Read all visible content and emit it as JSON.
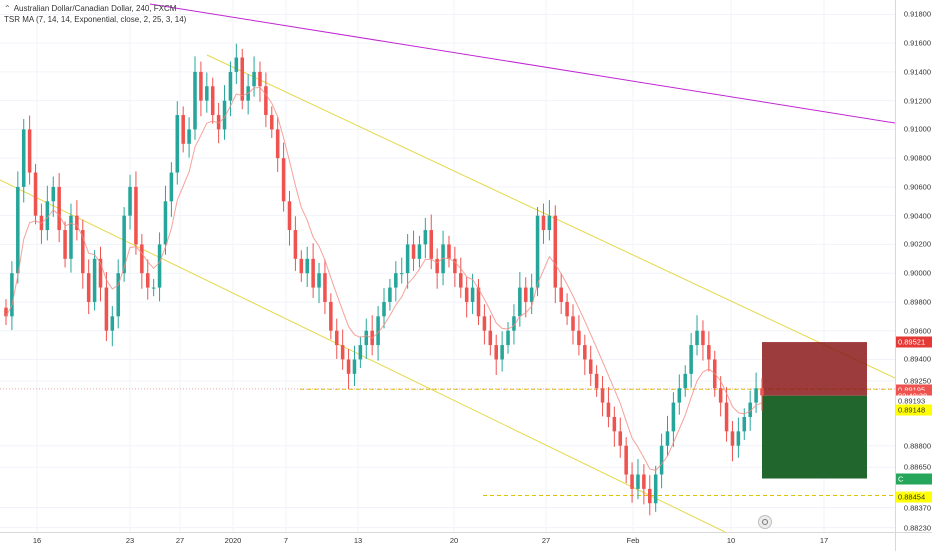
{
  "header": {
    "symbol_line": "Australian Dollar/Canadian Dollar, 240, FXCM",
    "indicator_line": "TSR MA (7, 14, 14, Exponential, close, 2, 25, 3, 14)"
  },
  "price_axis": {
    "ticks": [
      "0.91800",
      "0.91600",
      "0.91400",
      "0.91200",
      "0.91000",
      "0.90800",
      "0.90600",
      "0.90400",
      "0.90200",
      "0.90000",
      "0.89800",
      "0.89600",
      "0.89400",
      "0.89250",
      "0.88800",
      "0.88650",
      "0.88370",
      "0.88230"
    ],
    "labels": {
      "stop_loss": "0.89521",
      "last_price": "0.89195",
      "countdown": "02:40:38",
      "line_ref": "0.89193",
      "entry": "0.89148",
      "target": "0.88572",
      "target_prefix": "C",
      "support": "0.88454"
    }
  },
  "time_axis": {
    "ticks": [
      "16",
      "23",
      "27",
      "2020",
      "7",
      "13",
      "20",
      "27",
      "Feb",
      "10",
      "17"
    ]
  },
  "colors": {
    "up": "#26a69a",
    "down": "#ef5350",
    "channel": "#e5d84a",
    "long_trend": "#c026d3",
    "ma": "#f28b82",
    "dashed": "#e0c200",
    "stop_zone": "#8b1a1a",
    "target_zone": "#0e5a1b",
    "support_label": "#ffff00"
  },
  "chart_data": {
    "type": "candlestick",
    "title": "Australian Dollar/Canadian Dollar, 240, FXCM",
    "ylim": [
      0.882,
      0.919
    ],
    "x_ticks": [
      "16",
      "23",
      "27",
      "2020",
      "7",
      "13",
      "20",
      "27",
      "Feb",
      "10",
      "17"
    ],
    "closes": [
      0.897,
      0.9,
      0.906,
      0.91,
      0.907,
      0.904,
      0.903,
      0.905,
      0.906,
      0.903,
      0.901,
      0.904,
      0.903,
      0.9,
      0.898,
      0.901,
      0.899,
      0.896,
      0.897,
      0.9,
      0.904,
      0.906,
      0.902,
      0.9,
      0.899,
      0.899,
      0.902,
      0.905,
      0.907,
      0.911,
      0.909,
      0.91,
      0.914,
      0.912,
      0.913,
      0.911,
      0.91,
      0.912,
      0.914,
      0.915,
      0.912,
      0.913,
      0.914,
      0.913,
      0.911,
      0.91,
      0.908,
      0.905,
      0.903,
      0.901,
      0.9,
      0.901,
      0.899,
      0.9,
      0.898,
      0.896,
      0.895,
      0.894,
      0.893,
      0.894,
      0.895,
      0.896,
      0.895,
      0.897,
      0.898,
      0.899,
      0.9,
      0.9,
      0.902,
      0.901,
      0.902,
      0.903,
      0.901,
      0.9,
      0.902,
      0.901,
      0.9,
      0.899,
      0.898,
      0.899,
      0.897,
      0.896,
      0.895,
      0.894,
      0.895,
      0.896,
      0.897,
      0.899,
      0.898,
      0.899,
      0.904,
      0.903,
      0.904,
      0.899,
      0.898,
      0.897,
      0.896,
      0.895,
      0.894,
      0.893,
      0.892,
      0.891,
      0.89,
      0.889,
      0.888,
      0.886,
      0.885,
      0.886,
      0.885,
      0.884,
      0.886,
      0.888,
      0.889,
      0.891,
      0.892,
      0.893,
      0.895,
      0.896,
      0.895,
      0.894,
      0.892,
      0.891,
      0.889,
      0.888,
      0.889,
      0.89,
      0.891,
      0.892,
      0.8915
    ],
    "dashed_levels": [
      0.89193,
      0.88454
    ],
    "stop_loss": 0.89521,
    "entry": 0.89148,
    "target": 0.88572,
    "last_price": 0.89195
  }
}
